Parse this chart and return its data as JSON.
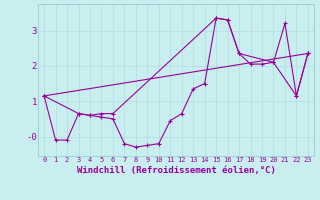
{
  "xlabel": "Windchill (Refroidissement éolien,°C)",
  "bg_color": "#c8eef0",
  "line_color": "#990099",
  "grid_color": "#b0dde0",
  "xlim": [
    -0.5,
    23.5
  ],
  "ylim": [
    -0.55,
    3.75
  ],
  "line1_x": [
    0,
    1,
    2,
    3,
    4,
    5,
    6,
    7,
    8,
    9,
    10,
    11,
    12,
    13,
    14,
    15,
    16,
    17,
    18,
    19,
    20,
    21,
    22,
    23
  ],
  "line1_y": [
    1.15,
    -0.1,
    -0.1,
    0.65,
    0.6,
    0.55,
    0.5,
    -0.2,
    -0.3,
    -0.25,
    -0.2,
    0.45,
    0.65,
    1.35,
    1.5,
    3.35,
    3.3,
    2.35,
    2.05,
    2.05,
    2.1,
    3.2,
    1.15,
    2.35
  ],
  "line2_x": [
    0,
    3,
    4,
    5,
    6,
    15,
    16,
    17,
    20,
    22,
    23
  ],
  "line2_y": [
    1.15,
    0.65,
    0.6,
    0.65,
    0.65,
    3.35,
    3.3,
    2.35,
    2.1,
    1.15,
    2.35
  ],
  "line3_x": [
    0,
    23
  ],
  "line3_y": [
    1.15,
    2.35
  ],
  "xtick_fontsize": 5,
  "ytick_fontsize": 6.5,
  "xlabel_fontsize": 6.5
}
